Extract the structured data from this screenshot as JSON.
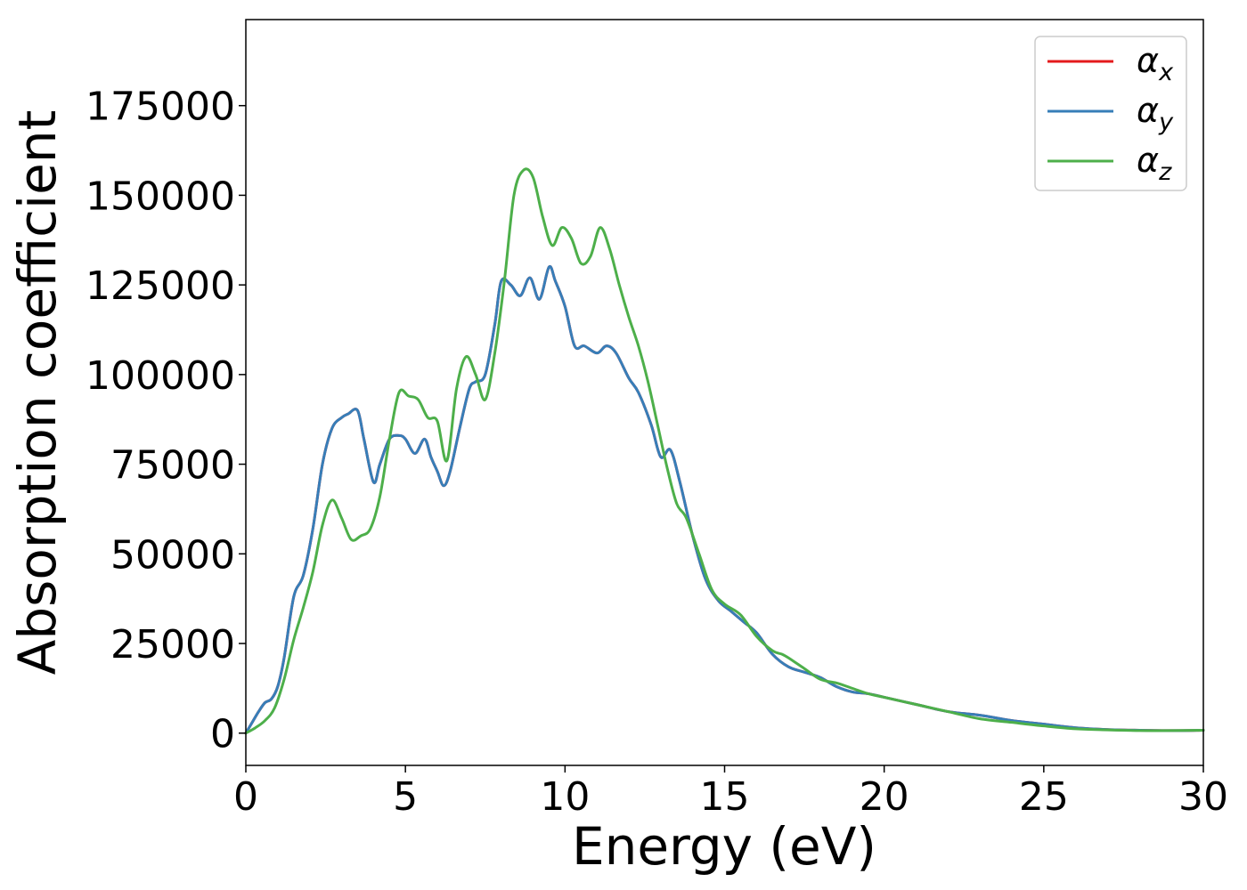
{
  "chart_data": {
    "type": "line",
    "title": "",
    "xlabel": "Energy (eV)",
    "ylabel": "Absorption coefficient",
    "xlim": [
      0,
      30
    ],
    "ylim": [
      -9000,
      199000
    ],
    "x_ticks": [
      0,
      5,
      10,
      15,
      20,
      25,
      30
    ],
    "y_ticks": [
      0,
      25000,
      50000,
      75000,
      100000,
      125000,
      150000,
      175000
    ],
    "grid": false,
    "legend": {
      "placement": "top-right",
      "entries": [
        {
          "base": "α",
          "sub": "x",
          "color": "#e41a1c"
        },
        {
          "base": "α",
          "sub": "y",
          "color": "#377eb8"
        },
        {
          "base": "α",
          "sub": "z",
          "color": "#4daf4a"
        }
      ]
    },
    "series": [
      {
        "name": "αx",
        "color": "#e41a1c",
        "x": [
          0,
          0.2,
          0.4,
          0.6,
          0.8,
          1.0,
          1.2,
          1.5,
          1.8,
          2.1,
          2.4,
          2.7,
          3.0,
          3.2,
          3.5,
          3.7,
          4.0,
          4.2,
          4.5,
          4.8,
          5.0,
          5.3,
          5.6,
          5.8,
          6.0,
          6.2,
          6.4,
          6.7,
          7.0,
          7.2,
          7.5,
          7.8,
          8.0,
          8.3,
          8.6,
          8.9,
          9.2,
          9.5,
          9.7,
          10.0,
          10.3,
          10.6,
          11.0,
          11.3,
          11.6,
          12.0,
          12.3,
          12.7,
          13.0,
          13.3,
          13.6,
          14.0,
          14.4,
          14.8,
          15.2,
          15.6,
          16.0,
          16.5,
          17.0,
          17.5,
          18.0,
          18.5,
          19.0,
          19.5,
          20.0,
          21.0,
          22.0,
          23.0,
          24.0,
          25.0,
          26.0,
          27.0,
          28.0,
          29.0,
          30.0
        ],
        "y": [
          0,
          3000,
          6000,
          8500,
          9500,
          13000,
          21000,
          38000,
          44000,
          57000,
          75000,
          85000,
          88000,
          89000,
          90000,
          82000,
          70000,
          75000,
          82000,
          83000,
          82000,
          78000,
          82000,
          77000,
          73000,
          69000,
          73000,
          85000,
          96000,
          98000,
          100000,
          114000,
          126000,
          125000,
          122000,
          127000,
          121000,
          130000,
          126000,
          119000,
          108000,
          108000,
          106000,
          108000,
          106000,
          99000,
          95000,
          86000,
          77000,
          79000,
          70000,
          55000,
          43000,
          37000,
          34000,
          31000,
          28000,
          22000,
          18500,
          17000,
          15500,
          13000,
          11500,
          11000,
          10000,
          8000,
          6000,
          5000,
          3500,
          2500,
          1500,
          1000,
          800,
          700,
          800
        ]
      },
      {
        "name": "αy",
        "color": "#377eb8",
        "x": [
          0,
          0.2,
          0.4,
          0.6,
          0.8,
          1.0,
          1.2,
          1.5,
          1.8,
          2.1,
          2.4,
          2.7,
          3.0,
          3.2,
          3.5,
          3.7,
          4.0,
          4.2,
          4.5,
          4.8,
          5.0,
          5.3,
          5.6,
          5.8,
          6.0,
          6.2,
          6.4,
          6.7,
          7.0,
          7.2,
          7.5,
          7.8,
          8.0,
          8.3,
          8.6,
          8.9,
          9.2,
          9.5,
          9.7,
          10.0,
          10.3,
          10.6,
          11.0,
          11.3,
          11.6,
          12.0,
          12.3,
          12.7,
          13.0,
          13.3,
          13.6,
          14.0,
          14.4,
          14.8,
          15.2,
          15.6,
          16.0,
          16.5,
          17.0,
          17.5,
          18.0,
          18.5,
          19.0,
          19.5,
          20.0,
          21.0,
          22.0,
          23.0,
          24.0,
          25.0,
          26.0,
          27.0,
          28.0,
          29.0,
          30.0
        ],
        "y": [
          0,
          3000,
          6000,
          8500,
          9500,
          13000,
          21000,
          38000,
          44000,
          57000,
          75000,
          85000,
          88000,
          89000,
          90000,
          82000,
          70000,
          75000,
          82000,
          83000,
          82000,
          78000,
          82000,
          77000,
          73000,
          69000,
          73000,
          85000,
          96000,
          98000,
          100000,
          114000,
          126000,
          125000,
          122000,
          127000,
          121000,
          130000,
          126000,
          119000,
          108000,
          108000,
          106000,
          108000,
          106000,
          99000,
          95000,
          86000,
          77000,
          79000,
          70000,
          55000,
          43000,
          37000,
          34000,
          31000,
          28000,
          22000,
          18500,
          17000,
          15500,
          13000,
          11500,
          11000,
          10000,
          8000,
          6000,
          5000,
          3500,
          2500,
          1500,
          1000,
          800,
          700,
          800
        ]
      },
      {
        "name": "αz",
        "color": "#4daf4a",
        "x": [
          0,
          0.3,
          0.6,
          0.9,
          1.2,
          1.5,
          1.8,
          2.1,
          2.4,
          2.7,
          3.0,
          3.3,
          3.6,
          3.9,
          4.2,
          4.5,
          4.8,
          5.1,
          5.4,
          5.7,
          6.0,
          6.3,
          6.6,
          6.9,
          7.2,
          7.5,
          7.8,
          8.1,
          8.4,
          8.7,
          9.0,
          9.3,
          9.6,
          9.9,
          10.2,
          10.5,
          10.8,
          11.1,
          11.4,
          11.7,
          12.0,
          12.3,
          12.6,
          12.9,
          13.2,
          13.5,
          13.8,
          14.2,
          14.6,
          15.0,
          15.5,
          16.0,
          16.5,
          16.8,
          17.0,
          17.5,
          18.0,
          18.5,
          19.0,
          19.5,
          20.0,
          21.0,
          22.0,
          23.0,
          24.0,
          25.0,
          26.0,
          27.0,
          28.0,
          29.0,
          30.0
        ],
        "y": [
          0,
          1500,
          3500,
          7000,
          15000,
          26000,
          35000,
          45000,
          58000,
          65000,
          60000,
          54000,
          55000,
          57000,
          66000,
          82000,
          95000,
          94000,
          93000,
          88000,
          87000,
          76000,
          96000,
          105000,
          100000,
          93000,
          106000,
          126000,
          150000,
          157000,
          155000,
          144000,
          136000,
          141000,
          138000,
          131000,
          133000,
          141000,
          135000,
          125000,
          116000,
          108000,
          98000,
          86000,
          74000,
          64000,
          60000,
          50000,
          40000,
          36000,
          33000,
          27000,
          23000,
          22000,
          21000,
          18000,
          15000,
          14000,
          12500,
          11000,
          10000,
          8000,
          6000,
          4000,
          3000,
          2000,
          1200,
          900,
          700,
          700,
          800
        ]
      }
    ]
  }
}
